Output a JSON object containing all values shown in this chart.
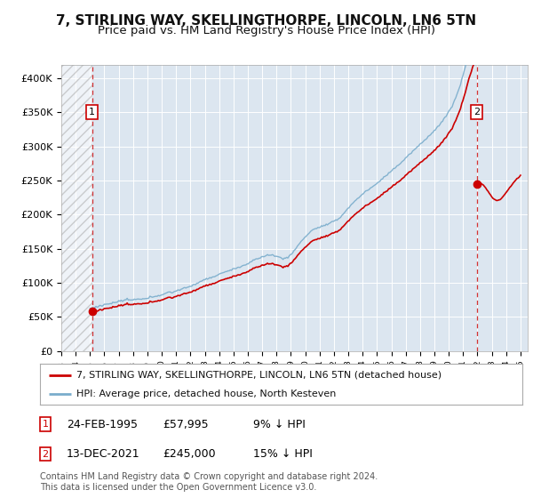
{
  "title": "7, STIRLING WAY, SKELLINGTHORPE, LINCOLN, LN6 5TN",
  "subtitle": "Price paid vs. HM Land Registry's House Price Index (HPI)",
  "ylim": [
    0,
    420000
  ],
  "yticks": [
    0,
    50000,
    100000,
    150000,
    200000,
    250000,
    300000,
    350000,
    400000
  ],
  "ytick_labels": [
    "£0",
    "£50K",
    "£100K",
    "£150K",
    "£200K",
    "£250K",
    "£300K",
    "£350K",
    "£400K"
  ],
  "xlim_start": 1993.0,
  "xlim_end": 2025.5,
  "background_color": "#ffffff",
  "plot_bg_color": "#dce6f0",
  "grid_color": "#ffffff",
  "hatch_color": "#aaaaaa",
  "red_line_color": "#cc0000",
  "blue_line_color": "#7aadcc",
  "marker1_date": 1995.14,
  "marker1_value": 57995,
  "marker2_date": 2021.96,
  "marker2_value": 245000,
  "legend_line1": "7, STIRLING WAY, SKELLINGTHORPE, LINCOLN, LN6 5TN (detached house)",
  "legend_line2": "HPI: Average price, detached house, North Kesteven",
  "footer": "Contains HM Land Registry data © Crown copyright and database right 2024.\nThis data is licensed under the Open Government Licence v3.0.",
  "title_fontsize": 11,
  "subtitle_fontsize": 9.5,
  "tick_fontsize": 8,
  "legend_fontsize": 8,
  "annotation_fontsize": 9,
  "footer_fontsize": 7
}
